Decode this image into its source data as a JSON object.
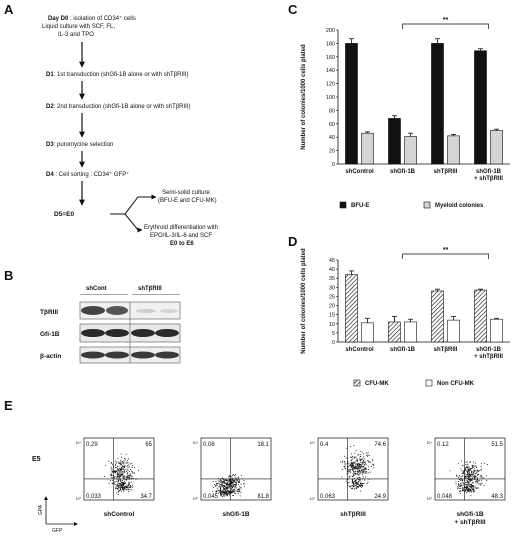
{
  "panels": {
    "a": "A",
    "b": "B",
    "c": "C",
    "d": "D",
    "e": "E"
  },
  "flow": {
    "d0_line1_bold": "Day D0",
    "d0_line1_rest": " : isolation  of CD34⁺ cells",
    "d0_line2": "Liquid culture with SCF, FL,",
    "d0_line3": "IL-3 and TPO",
    "d1_bold": "D1",
    "d1_rest": ": 1st transduction (shGfi-1B alone or with shTβRIII)",
    "d2_bold": "D2",
    "d2_rest": ": 2nd transduction (shGfi-1B alone or with shTβRIII)",
    "d3_bold": "D3",
    "d3_rest": ": puromycine selection",
    "d4_bold": "D4",
    "d4_rest": " : Cell sorting : CD34⁺ GFP⁺",
    "d5_bold": "D5=E0",
    "branch1_line1": "Semi-solid culture",
    "branch1_line2": "(BFU-E and CFU-MK)",
    "branch2_line1": "Erythroid differentiation with",
    "branch2_line2": "EPO/IL-3/IL-6 and SCF",
    "branch2_line3": "E0 to E6"
  },
  "blot": {
    "col1": "shCont",
    "col2": "shTβRIII",
    "rows": [
      "TβRIII",
      "Gfi-1B",
      "β-actin"
    ]
  },
  "chart_data": [
    {
      "type": "bar",
      "title": "",
      "ylabel": "Number of colonies/1000 cells plated",
      "ylim": [
        0,
        200
      ],
      "yticks": [
        0,
        20,
        40,
        60,
        80,
        100,
        120,
        140,
        160,
        180,
        200
      ],
      "categories": [
        "shControl",
        "shGfi-1B",
        "shTβRIII",
        "shGfi-1B\n+ shTβRIII"
      ],
      "category_lines": [
        [
          "shControl"
        ],
        [
          "shGfi-1B"
        ],
        [
          "shTβRIII"
        ],
        [
          "shGfi-1B",
          "+ shTβRIII"
        ]
      ],
      "series": [
        {
          "name": "BFU-E",
          "values": [
            180,
            68,
            180,
            169
          ],
          "errors": [
            7,
            4,
            7,
            3
          ],
          "color": "#111111"
        },
        {
          "name": "Myeloid colonies",
          "values": [
            46,
            41,
            42,
            50
          ],
          "errors": [
            2,
            5,
            2,
            2
          ],
          "color": "#d4d4d4"
        }
      ],
      "significance": {
        "label": "**",
        "from": 1,
        "to": 3
      },
      "legend": "bottom"
    },
    {
      "type": "bar",
      "title": "",
      "ylabel": "Number of colonies/1000 cells plated",
      "ylim": [
        0,
        45
      ],
      "yticks": [
        0,
        5,
        10,
        15,
        20,
        25,
        30,
        35,
        40,
        45
      ],
      "categories": [
        "shControl",
        "shGfi-1B",
        "shTβRIII",
        "shGfi-1B\n+ shTβRIII"
      ],
      "category_lines": [
        [
          "shControl"
        ],
        [
          "shGfi-1B"
        ],
        [
          "shTβRIII"
        ],
        [
          "shGfi-1B",
          "+ shTβRIII"
        ]
      ],
      "series": [
        {
          "name": "CFU-MK",
          "values": [
            37,
            11,
            28,
            28.5
          ],
          "errors": [
            2,
            3,
            1,
            0.5
          ],
          "color": "hatched"
        },
        {
          "name": "Non CFU-MK",
          "values": [
            10.5,
            11,
            12,
            12.5
          ],
          "errors": [
            2.5,
            1.5,
            2,
            0.5
          ],
          "color": "#ffffff"
        }
      ],
      "significance": {
        "label": "**",
        "from": 1,
        "to": 3
      },
      "legend": "bottom"
    }
  ],
  "flow_cytometry": {
    "row_label": "E5",
    "y_axis": "GPA",
    "x_axis": "GFP",
    "plots": [
      {
        "label": "shControl",
        "label_lines": [
          "shControl"
        ],
        "ul": "0.29",
        "ur": "65",
        "ll": "0.033",
        "lr": "34.7"
      },
      {
        "label": "shGfi-1B",
        "label_lines": [
          "shGfi-1B"
        ],
        "ul": "0.08",
        "ur": "18.1",
        "ll": "0.045",
        "lr": "81.8"
      },
      {
        "label": "shTβRIII",
        "label_lines": [
          "shTβRIII"
        ],
        "ul": "0.4",
        "ur": "74.6",
        "ll": "0.063",
        "lr": "24.9"
      },
      {
        "label": "shGfi-1B + shTβRIII",
        "label_lines": [
          "shGfi-1B",
          "+ shTβRIII"
        ],
        "ul": "0.12",
        "ur": "51.5",
        "ll": "0.048",
        "lr": "48.3"
      }
    ]
  }
}
